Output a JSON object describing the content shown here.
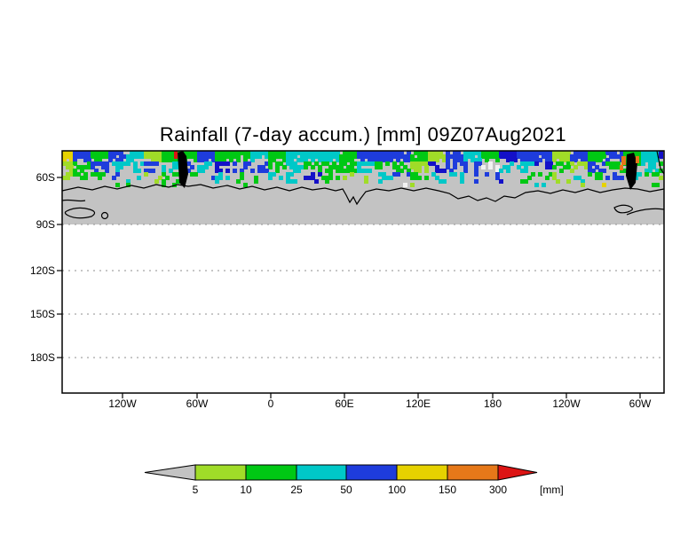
{
  "title": "Rainfall (7-day accum.) [mm] 09Z07Aug2021",
  "axes": {
    "lat_labels": [
      "60S",
      "90S",
      "120S",
      "150S",
      "180S"
    ],
    "lon_labels": [
      "120W",
      "60W",
      "0",
      "60E",
      "120E",
      "180",
      "120W",
      "60W"
    ]
  },
  "legend": {
    "values": [
      "5",
      "10",
      "25",
      "50",
      "100",
      "150",
      "300"
    ],
    "unit": "[mm]"
  },
  "chart_data": {
    "type": "heatmap",
    "variable": "Rainfall (7-day accum.)",
    "unit": "[mm]",
    "valid_time": "09Z07Aug2021",
    "title": "Rainfall (7-day accum.) [mm] 09Z07Aug2021",
    "x_tick_labels": [
      "120W",
      "60W",
      "0",
      "60E",
      "120E",
      "180",
      "120W",
      "60W"
    ],
    "y_tick_labels": [
      "60S",
      "90S",
      "120S",
      "150S",
      "180S"
    ],
    "colorbar_levels": [
      5,
      10,
      25,
      50,
      100,
      150,
      300
    ],
    "legend_position": "bottom center",
    "grid": "dashed horizontal gridlines at 90S, 120S, 150S, 180S",
    "colors": {
      "below_5": "#c3c3c3",
      "level_5_10": "#a0dc28",
      "level_10_25": "#00c814",
      "level_25_50": "#00c8c8",
      "level_50_100": "#1e3cdc",
      "level_100_150": "#e6d200",
      "level_150_300": "#e67819",
      "above_300": "#dc1414",
      "dark_blue_patch": "#1410c8",
      "white_patch": "#f2f2f2",
      "no_data_gray": "#c3c3c3",
      "background": "#ffffff"
    },
    "data_summary": "Circumpolar band of 5-100+ mm 7-day rainfall accumulations between roughly 50S and 70S around Antarctica (mostly 10-50 mm green/cyan, patches of 50-100 mm blue); gray (<5 mm) over the Antarctic continent interior; isolated 150-300+ mm orange/red maxima near the Antarctic Peninsula (~60W) at the top edge of the plot; area south of 90S blank."
  }
}
